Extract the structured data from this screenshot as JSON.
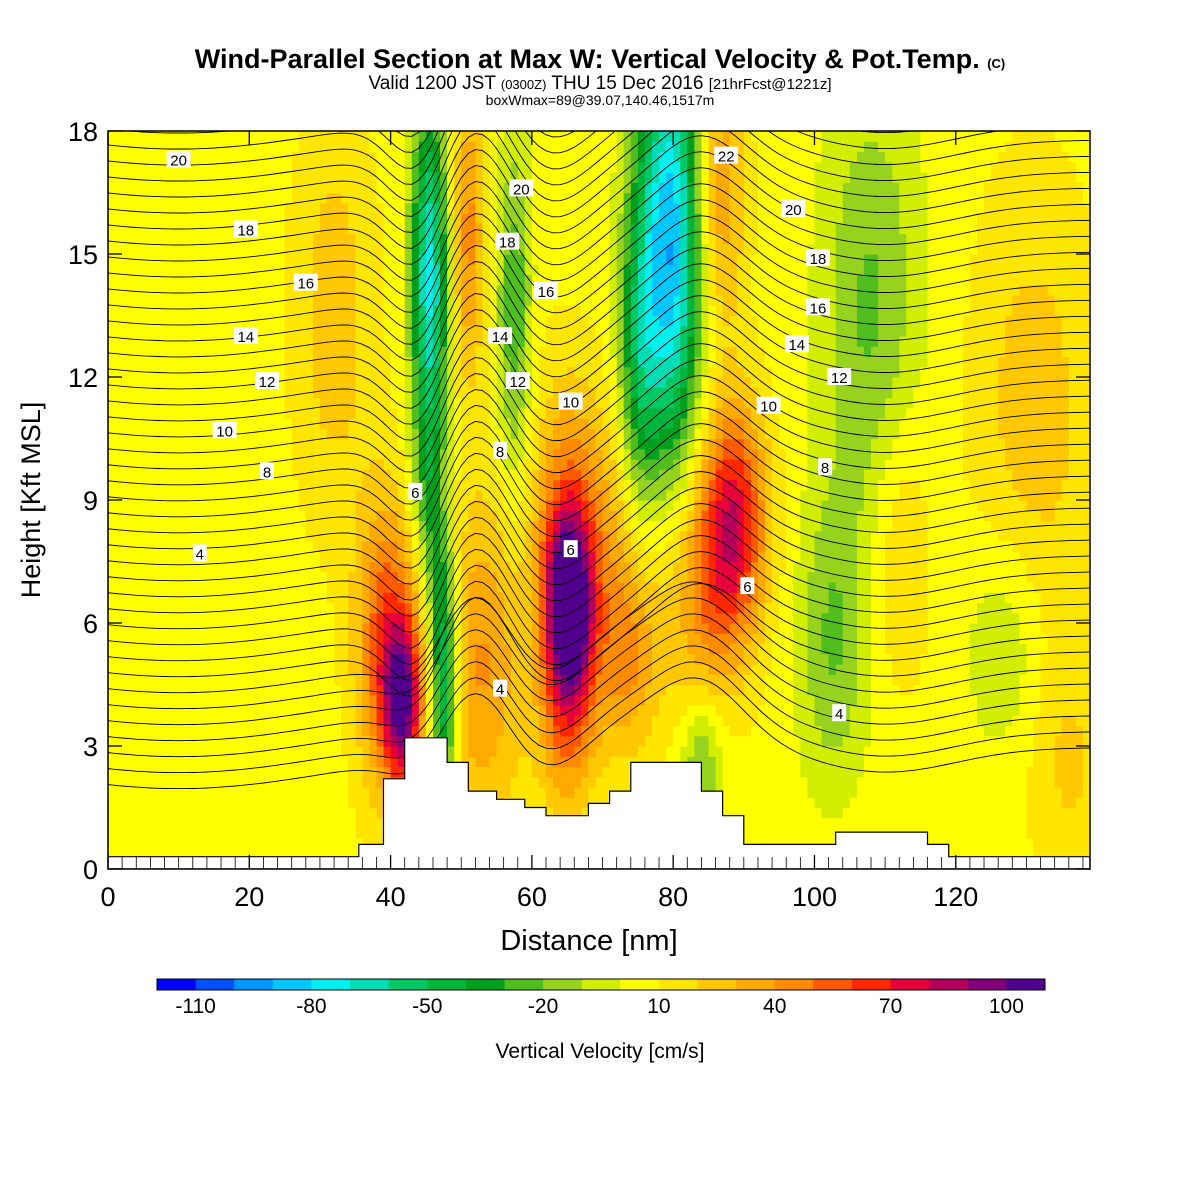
{
  "chart_data": {
    "type": "heatmap",
    "title": "Wind-Parallel Section at Max W: Vertical Velocity & Pot.Temp.",
    "title_mark": "(C)",
    "subtitle": {
      "main_a": "Valid 1200 JST",
      "zulu": "(0300Z)",
      "main_b": "THU 15 Dec 2016",
      "fcst": "[21hrFcst@1221z]"
    },
    "subtitle2": "boxWmax=89@39.07,140.46,1517m",
    "xlabel": "Distance [nm]",
    "ylabel": "Height [Kft MSL]",
    "xlim": [
      0,
      139
    ],
    "ylim": [
      0,
      18
    ],
    "x_ticks": [
      0,
      20,
      40,
      60,
      80,
      100,
      120
    ],
    "y_ticks": [
      0,
      3,
      6,
      9,
      12,
      15,
      18
    ],
    "colorbar": {
      "label": "Vertical Velocity [cm/s]",
      "boundaries": [
        -120,
        -110,
        -100,
        -90,
        -80,
        -70,
        -60,
        -50,
        -40,
        -30,
        -20,
        -10,
        0,
        10,
        20,
        30,
        40,
        50,
        60,
        70,
        80,
        90,
        100,
        110
      ],
      "colors": [
        "#0000ff",
        "#0050ff",
        "#0096ff",
        "#00c8ff",
        "#00f0f0",
        "#00dcb4",
        "#00c864",
        "#00b43c",
        "#00a01e",
        "#50be1e",
        "#96d21e",
        "#d2ee00",
        "#ffff00",
        "#ffe600",
        "#ffc800",
        "#ffaa00",
        "#ff8c00",
        "#ff5a00",
        "#ff2800",
        "#e6003c",
        "#b4005a",
        "#820078",
        "#50008c"
      ],
      "tick_labels": [
        "-110",
        "-80",
        "-50",
        "-20",
        "10",
        "40",
        "70",
        "100"
      ]
    },
    "terrain_nm_kft": [
      [
        0,
        0.3
      ],
      [
        35.5,
        0.3
      ],
      [
        35.5,
        0.6
      ],
      [
        39,
        0.6
      ],
      [
        39,
        2.2
      ],
      [
        42,
        2.2
      ],
      [
        42,
        3.2
      ],
      [
        48,
        3.2
      ],
      [
        48,
        2.6
      ],
      [
        51,
        2.6
      ],
      [
        51,
        1.9
      ],
      [
        55,
        1.9
      ],
      [
        55,
        1.7
      ],
      [
        59,
        1.7
      ],
      [
        59,
        1.5
      ],
      [
        62,
        1.5
      ],
      [
        62,
        1.3
      ],
      [
        68,
        1.3
      ],
      [
        68,
        1.6
      ],
      [
        71,
        1.6
      ],
      [
        71,
        1.9
      ],
      [
        74,
        1.9
      ],
      [
        74,
        2.6
      ],
      [
        84,
        2.6
      ],
      [
        84,
        1.9
      ],
      [
        87,
        1.9
      ],
      [
        87,
        1.3
      ],
      [
        90,
        1.3
      ],
      [
        90,
        0.6
      ],
      [
        103,
        0.6
      ],
      [
        103,
        0.9
      ],
      [
        116,
        0.9
      ],
      [
        116,
        0.6
      ],
      [
        119,
        0.6
      ],
      [
        119,
        0.3
      ],
      [
        139,
        0.3
      ]
    ],
    "isentrope_labels": [
      {
        "text": "20",
        "x": 10,
        "y": 17.3
      },
      {
        "text": "18",
        "x": 19.5,
        "y": 15.6
      },
      {
        "text": "16",
        "x": 28,
        "y": 14.3
      },
      {
        "text": "14",
        "x": 19.5,
        "y": 13.0
      },
      {
        "text": "12",
        "x": 22.5,
        "y": 11.9
      },
      {
        "text": "10",
        "x": 16.5,
        "y": 10.7
      },
      {
        "text": "8",
        "x": 22.5,
        "y": 9.7
      },
      {
        "text": "4",
        "x": 13,
        "y": 7.7
      },
      {
        "text": "6",
        "x": 43.5,
        "y": 9.2
      },
      {
        "text": "20",
        "x": 58.5,
        "y": 16.6
      },
      {
        "text": "18",
        "x": 56.5,
        "y": 15.3
      },
      {
        "text": "16",
        "x": 62,
        "y": 14.1
      },
      {
        "text": "14",
        "x": 55.5,
        "y": 13.0
      },
      {
        "text": "12",
        "x": 58,
        "y": 11.9
      },
      {
        "text": "10",
        "x": 65.5,
        "y": 11.4
      },
      {
        "text": "8",
        "x": 55.5,
        "y": 10.2
      },
      {
        "text": "6",
        "x": 65.5,
        "y": 7.8
      },
      {
        "text": "4",
        "x": 55.5,
        "y": 4.4
      },
      {
        "text": "22",
        "x": 87.5,
        "y": 17.4
      },
      {
        "text": "20",
        "x": 97,
        "y": 16.1
      },
      {
        "text": "18",
        "x": 100.5,
        "y": 14.9
      },
      {
        "text": "16",
        "x": 100.5,
        "y": 13.7
      },
      {
        "text": "14",
        "x": 97.5,
        "y": 12.8
      },
      {
        "text": "12",
        "x": 103.5,
        "y": 12.0
      },
      {
        "text": "10",
        "x": 93.5,
        "y": 11.3
      },
      {
        "text": "8",
        "x": 101.5,
        "y": 9.8
      },
      {
        "text": "6",
        "x": 90.5,
        "y": 6.9
      },
      {
        "text": "4",
        "x": 103.5,
        "y": 3.8
      }
    ]
  }
}
